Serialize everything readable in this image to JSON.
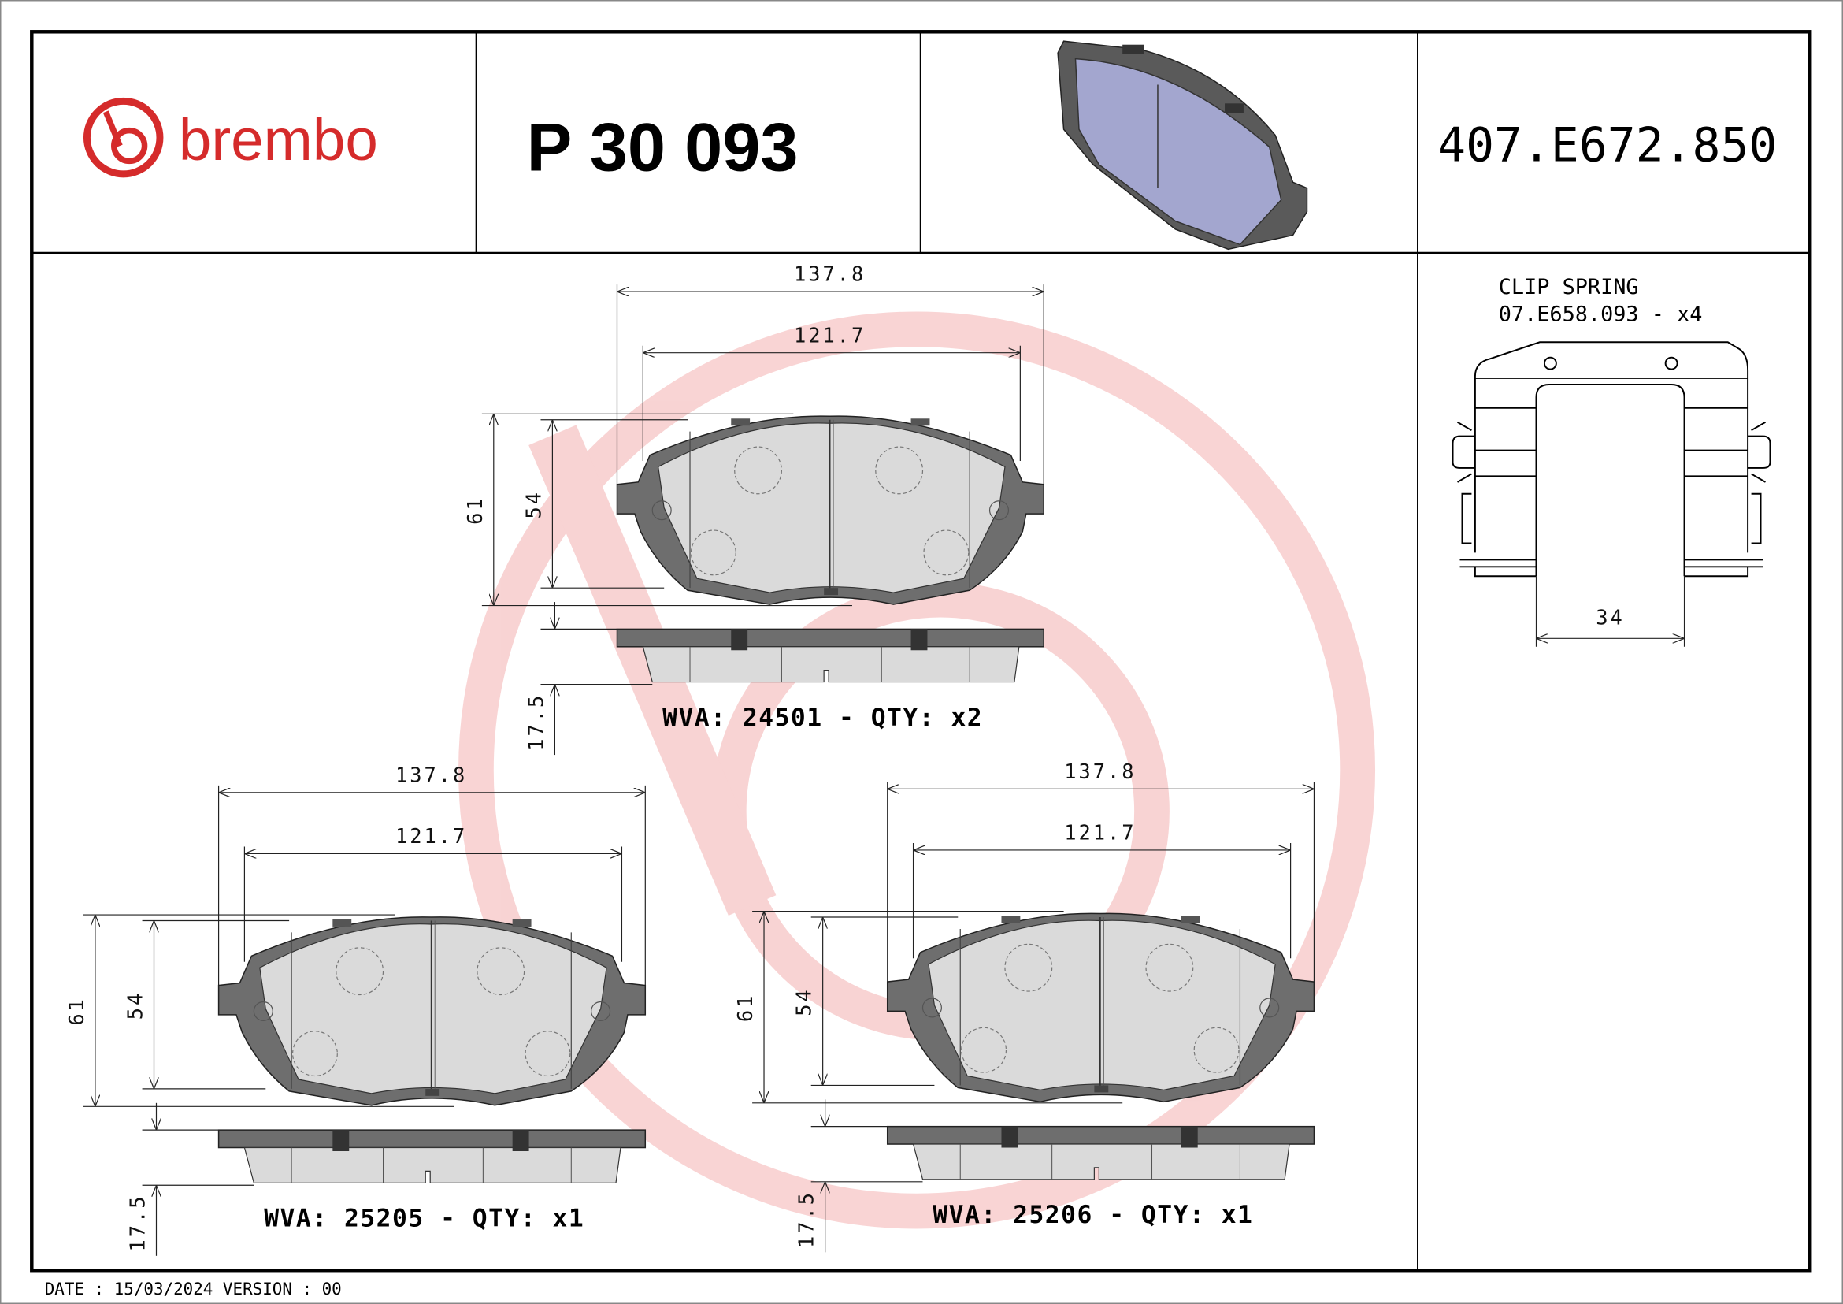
{
  "header": {
    "brand": "brembo",
    "part_number": "P 30 093",
    "reference": "407.E672.850",
    "brand_color": "#d52b2b"
  },
  "clip_spring": {
    "title": "CLIP SPRING",
    "code": "07.E658.093 - x4",
    "dimension": "34"
  },
  "pads": [
    {
      "width_outer": "137.8",
      "width_inner": "121.7",
      "height_outer": "61",
      "height_inner": "54",
      "thickness": "17.5",
      "label": "WVA: 24501 - QTY: x2"
    },
    {
      "width_outer": "137.8",
      "width_inner": "121.7",
      "height_outer": "61",
      "height_inner": "54",
      "thickness": "17.5",
      "label": "WVA: 25205 - QTY: x1"
    },
    {
      "width_outer": "137.8",
      "width_inner": "121.7",
      "height_outer": "61",
      "height_inner": "54",
      "thickness": "17.5",
      "label": "WVA: 25206 - QTY: x1"
    }
  ],
  "footer": {
    "date_version": "DATE : 15/03/2024 VERSION : 00"
  }
}
